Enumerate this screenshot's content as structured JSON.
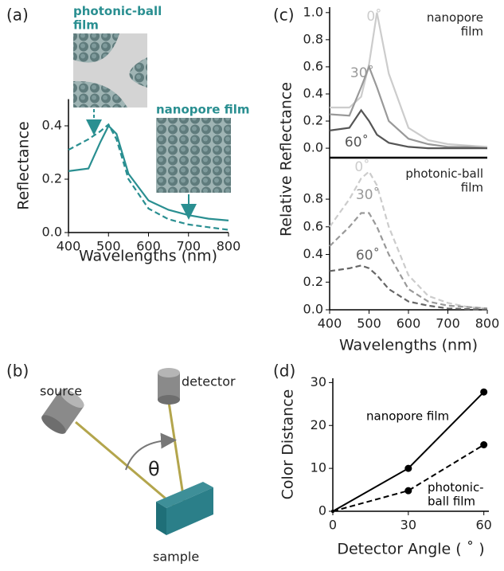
{
  "panel_labels": [
    "(a)",
    "(b)",
    "(c)",
    "(d)"
  ],
  "chart_data": [
    {
      "type": "line",
      "xlabel": "Wavelengths (nm)",
      "ylabel": "Reflectance",
      "x": [
        400,
        450,
        480,
        500,
        520,
        550,
        600,
        650,
        700,
        750,
        800
      ],
      "xlim": [
        400,
        800
      ],
      "xticks": [
        400,
        500,
        600,
        700,
        800
      ],
      "ylim": [
        0,
        0.5
      ],
      "yticks": [
        {
          "value": 0,
          "label": "0.0"
        },
        0.2,
        0.4
      ],
      "series": [
        {
          "name": "nanopore film",
          "color": "#2a8f91",
          "dashed": false,
          "values": [
            0.23,
            0.24,
            0.34,
            0.4,
            0.37,
            0.22,
            0.12,
            0.085,
            0.065,
            0.052,
            0.045
          ]
        },
        {
          "name": "photonic-ball film",
          "color": "#2a8f91",
          "dashed": true,
          "values": [
            0.31,
            0.35,
            0.38,
            0.405,
            0.35,
            0.2,
            0.09,
            0.05,
            0.03,
            0.02,
            0.01
          ]
        }
      ]
    },
    {
      "type": "line",
      "title": "nanopore film",
      "ylabel": "Relative Reflectance",
      "x": [
        400,
        450,
        480,
        500,
        520,
        550,
        600,
        650,
        700,
        750,
        800
      ],
      "xlim": [
        400,
        800
      ],
      "ylim": [
        -0.07,
        1.04
      ],
      "yticks": [
        {
          "value": 0,
          "label": "0.0"
        },
        0.2,
        0.4,
        0.6,
        0.8,
        {
          "value": 1,
          "label": "1.0"
        }
      ],
      "series": [
        {
          "name": "0˚",
          "color": "#cccccc",
          "dashed": false,
          "values": [
            0.3,
            0.3,
            0.38,
            0.62,
            1.0,
            0.55,
            0.15,
            0.06,
            0.03,
            0.02,
            0.01
          ]
        },
        {
          "name": "30˚",
          "color": "#999999",
          "dashed": false,
          "values": [
            0.25,
            0.24,
            0.45,
            0.6,
            0.45,
            0.2,
            0.07,
            0.03,
            0.01,
            0.01,
            0
          ]
        },
        {
          "name": "60˚",
          "color": "#555555",
          "dashed": false,
          "values": [
            0.13,
            0.15,
            0.28,
            0.2,
            0.1,
            0.04,
            0.01,
            0,
            0,
            0,
            0
          ]
        }
      ]
    },
    {
      "type": "line",
      "title": "photonic-ball film",
      "xlabel": "Wavelengths (nm)",
      "x": [
        400,
        450,
        480,
        500,
        520,
        550,
        600,
        650,
        700,
        750,
        800
      ],
      "xlim": [
        400,
        800
      ],
      "xticks": [
        400,
        500,
        600,
        700,
        800
      ],
      "ylim": [
        0,
        1.1
      ],
      "yticks": [
        {
          "value": 0,
          "label": "0.0"
        },
        0.2,
        0.4,
        0.6,
        0.8
      ],
      "series": [
        {
          "name": "0˚",
          "color": "#cccccc",
          "dashed": true,
          "values": [
            0.6,
            0.8,
            0.95,
            1.0,
            0.9,
            0.6,
            0.25,
            0.1,
            0.05,
            0.02,
            0.01
          ]
        },
        {
          "name": "30˚",
          "color": "#999999",
          "dashed": true,
          "values": [
            0.46,
            0.6,
            0.7,
            0.7,
            0.6,
            0.4,
            0.15,
            0.06,
            0.03,
            0.02,
            0.01
          ]
        },
        {
          "name": "60˚",
          "color": "#666666",
          "dashed": true,
          "values": [
            0.28,
            0.3,
            0.32,
            0.3,
            0.25,
            0.15,
            0.06,
            0.03,
            0.01,
            0.005,
            0
          ]
        }
      ]
    },
    {
      "type": "line",
      "xlabel": "Detector Angle ( ˚ )",
      "ylabel": "Color Distance",
      "x": [
        0,
        30,
        60
      ],
      "xlim": [
        0,
        62
      ],
      "xticks": [
        0,
        30,
        60
      ],
      "ylim": [
        0,
        31
      ],
      "yticks": [
        0,
        10,
        20,
        30
      ],
      "markers": true,
      "series": [
        {
          "name": "nanopore film",
          "color": "#000000",
          "dashed": false,
          "values": [
            0,
            10,
            27.8
          ]
        },
        {
          "name": "photonic-ball film",
          "color": "#000000",
          "dashed": true,
          "values": [
            0,
            4.8,
            15.5
          ]
        }
      ]
    }
  ],
  "diagram": {
    "source": "source",
    "detector": "detector",
    "sample": "sample",
    "angle": "θ"
  }
}
